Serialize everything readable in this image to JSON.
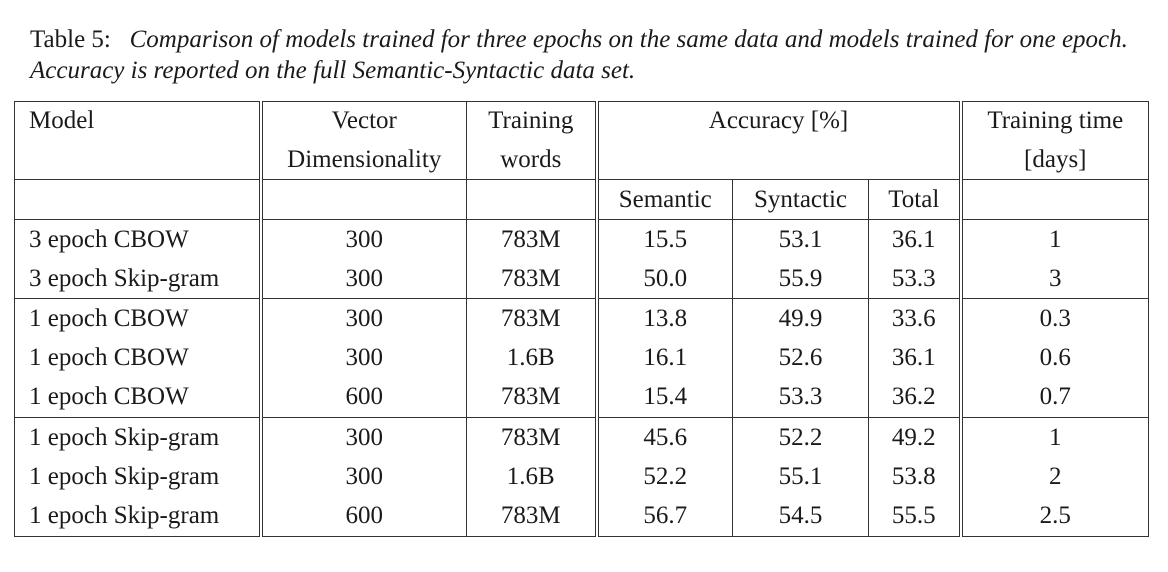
{
  "caption": {
    "label": "Table 5:",
    "text": "Comparison of models trained for three epochs on the same data and models trained for one epoch. Accuracy is reported on the full Semantic-Syntactic data set."
  },
  "table": {
    "header": {
      "model": "Model",
      "vector_line1": "Vector",
      "vector_line2": "Dimensionality",
      "training_line1": "Training",
      "training_line2": "words",
      "accuracy": "Accuracy [%]",
      "time_line1": "Training time",
      "time_line2": "[days]",
      "semantic": "Semantic",
      "syntactic": "Syntactic",
      "total": "Total"
    },
    "rows": [
      {
        "model": "3 epoch CBOW",
        "dim": "300",
        "words": "783M",
        "semantic": "15.5",
        "syntactic": "53.1",
        "total": "36.1",
        "time": "1"
      },
      {
        "model": "3 epoch Skip-gram",
        "dim": "300",
        "words": "783M",
        "semantic": "50.0",
        "syntactic": "55.9",
        "total": "53.3",
        "time": "3"
      },
      {
        "model": "1 epoch CBOW",
        "dim": "300",
        "words": "783M",
        "semantic": "13.8",
        "syntactic": "49.9",
        "total": "33.6",
        "time": "0.3"
      },
      {
        "model": "1 epoch CBOW",
        "dim": "300",
        "words": "1.6B",
        "semantic": "16.1",
        "syntactic": "52.6",
        "total": "36.1",
        "time": "0.6"
      },
      {
        "model": "1 epoch CBOW",
        "dim": "600",
        "words": "783M",
        "semantic": "15.4",
        "syntactic": "53.3",
        "total": "36.2",
        "time": "0.7"
      },
      {
        "model": "1 epoch Skip-gram",
        "dim": "300",
        "words": "783M",
        "semantic": "45.6",
        "syntactic": "52.2",
        "total": "49.2",
        "time": "1"
      },
      {
        "model": "1 epoch Skip-gram",
        "dim": "300",
        "words": "1.6B",
        "semantic": "52.2",
        "syntactic": "55.1",
        "total": "53.8",
        "time": "2"
      },
      {
        "model": "1 epoch Skip-gram",
        "dim": "600",
        "words": "783M",
        "semantic": "56.7",
        "syntactic": "54.5",
        "total": "55.5",
        "time": "2.5"
      }
    ]
  }
}
